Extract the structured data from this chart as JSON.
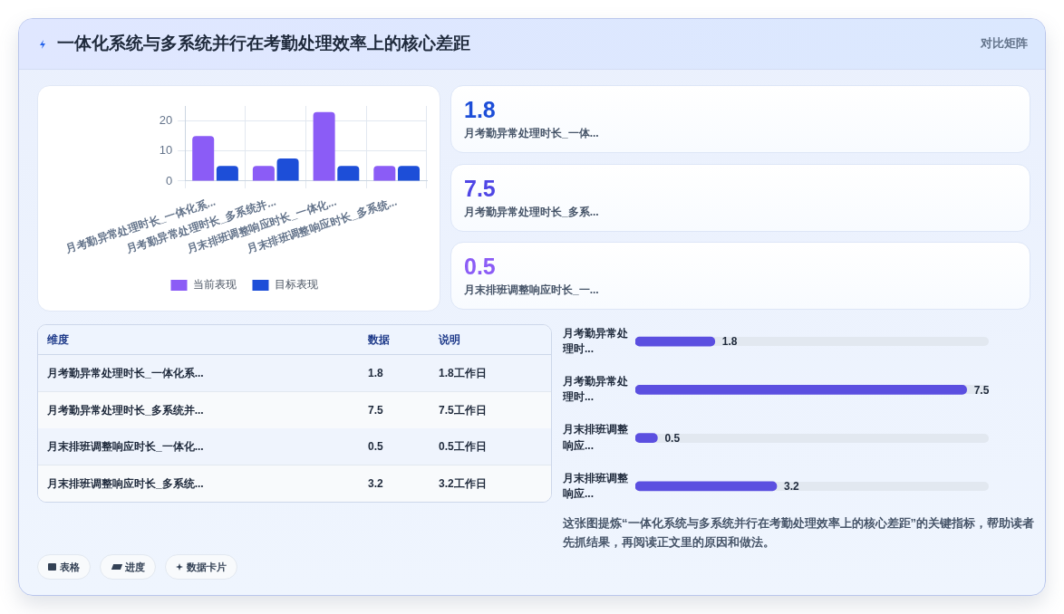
{
  "chart_data": [
    {
      "type": "bar",
      "title": "一体化系统与多系统并行在考勤处理效率上的核心差距",
      "categories": [
        "月考勤异常处理时长_一体化系...",
        "月考勤异常处理时长_多系统并...",
        "月末排班调整响应时长_一体化...",
        "月末排班调整响应时长_多系统..."
      ],
      "series": [
        {
          "name": "当前表现",
          "color": "#8b5cf6",
          "values": [
            15,
            5,
            23,
            5
          ]
        },
        {
          "name": "目标表现",
          "color": "#1d4ed8",
          "values": [
            5,
            7.5,
            5,
            5
          ]
        }
      ],
      "ylim": [
        0,
        25
      ],
      "yticks": [
        0,
        10,
        20
      ],
      "grid": true,
      "legend": "bottom",
      "annotations": [
        "表格",
        "进度",
        "数据卡片"
      ]
    },
    {
      "type": "other",
      "subtitle": "对比矩阵",
      "categories": [
        "月考勤异常处理时长_一体...",
        "月考勤异常处理时长_多系...",
        "月末排班调整响应时长_一..."
      ],
      "values": [
        1.8,
        7.5,
        0.5
      ],
      "data_labels": true
    },
    {
      "type": "other",
      "xlabel": "维度",
      "ylabel": "数据",
      "y2label": "说明",
      "categories": [
        "月考勤异常处理时长_一体化系...",
        "月考勤异常处理时长_多系统并...",
        "月末排班调整响应时长_一体化...",
        "月末排班调整响应时长_多系统..."
      ],
      "values": [
        1.8,
        7.5,
        0.5,
        3.2
      ],
      "data_labels": true,
      "annotations": [
        "1.8工作日",
        "7.5工作日",
        "0.5工作日",
        "3.2工作日"
      ]
    },
    {
      "type": "bar",
      "orientation": "horizontal",
      "categories": [
        "月考勤异常处理时...",
        "月考勤异常处理时...",
        "月末排班调整响应...",
        "月末排班调整响应..."
      ],
      "values": [
        1.8,
        7.5,
        0.5,
        3.2
      ],
      "color": "#5b4fe0",
      "data_labels": true,
      "tick_labels": "y",
      "grid": false,
      "annotations": [
        "这张图提炼“一体化系统与多系统并行在考勤处理效率上的核心差距”的关键指标，帮助读者先抓结果，再阅读正文里的原因和做法。"
      ]
    }
  ]
}
